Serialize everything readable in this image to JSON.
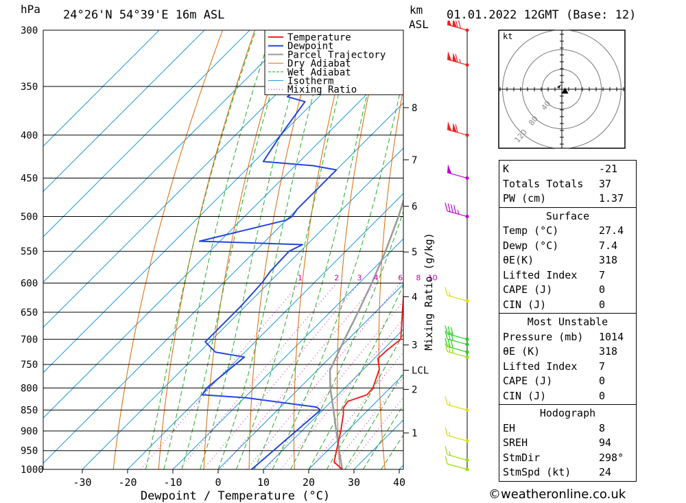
{
  "header": {
    "pressure_unit": "hPa",
    "location": "24°26'N  54°39'E  16m  ASL",
    "km_label": "km",
    "asl_label": "ASL",
    "datetime": "01.01.2022  12GMT  (Base: 12)"
  },
  "chart_data": {
    "type": "line",
    "subtype": "skew-T log-p diagram",
    "xlabel": "Dewpoint / Temperature (°C)",
    "ylabel": "hPa",
    "mixing_ratio_label": "Mixing Ratio (g/kg)",
    "pressure_ticks": [
      300,
      350,
      400,
      450,
      500,
      550,
      600,
      650,
      700,
      750,
      800,
      850,
      900,
      950,
      1000
    ],
    "temperature_ticks": [
      -30,
      -20,
      -10,
      0,
      10,
      20,
      30,
      40
    ],
    "ylim": [
      1000,
      300
    ],
    "xlim": [
      -40,
      40
    ],
    "height_ticks": [
      {
        "label": "1",
        "p": 905
      },
      {
        "label": "2",
        "p": 803
      },
      {
        "label": "3",
        "p": 711
      },
      {
        "label": "4",
        "p": 623
      },
      {
        "label": "5",
        "p": 551
      },
      {
        "label": "6",
        "p": 486
      },
      {
        "label": "7",
        "p": 428
      },
      {
        "label": "8",
        "p": 371
      },
      {
        "label": "LCL",
        "p": 762
      }
    ],
    "mixing_ratio_lines": [
      "1",
      "2",
      "3",
      "4",
      "6",
      "8",
      "10",
      "15",
      "20",
      "25"
    ],
    "legend": {
      "position": "top-right",
      "entries": [
        {
          "name": "Temperature",
          "color": "#ee2222"
        },
        {
          "name": "Dewpoint",
          "color": "#2244dd"
        },
        {
          "name": "Parcel Trajectory",
          "color": "#999999"
        },
        {
          "name": "Dry Adiabat",
          "color": "#dd6600"
        },
        {
          "name": "Wet Adiabat",
          "color": "#22aa22"
        },
        {
          "name": "Isotherm",
          "color": "#2299dd"
        },
        {
          "name": "Mixing Ratio",
          "color": "#cc00aa"
        }
      ]
    },
    "series": [
      {
        "name": "Temperature",
        "points": [
          [
            1000,
            27.4
          ],
          [
            980,
            24
          ],
          [
            950,
            22
          ],
          [
            900,
            18.6
          ],
          [
            860,
            15.5
          ],
          [
            845,
            14.1
          ],
          [
            830,
            13.6
          ],
          [
            815,
            16.4
          ],
          [
            800,
            16.2
          ],
          [
            760,
            13.5
          ],
          [
            738,
            10.8
          ],
          [
            720,
            11
          ],
          [
            700,
            11.6
          ],
          [
            650,
            6
          ],
          [
            600,
            0
          ],
          [
            550,
            -5.8
          ],
          [
            535,
            -5.5
          ],
          [
            522,
            -4
          ],
          [
            500,
            -5.2
          ],
          [
            450,
            -12.4
          ],
          [
            435,
            -12.6
          ],
          [
            400,
            -17.8
          ],
          [
            350,
            -25.8
          ],
          [
            300,
            -38
          ]
        ]
      },
      {
        "name": "Dewpoint",
        "points": [
          [
            1000,
            7.4
          ],
          [
            850,
            9.5
          ],
          [
            843,
            8
          ],
          [
            822,
            -9.5
          ],
          [
            815,
            -20
          ],
          [
            800,
            -20.5
          ],
          [
            735,
            -19
          ],
          [
            725,
            -26.5
          ],
          [
            705,
            -31
          ],
          [
            700,
            -31
          ],
          [
            640,
            -31
          ],
          [
            600,
            -31.5
          ],
          [
            581,
            -32.2
          ],
          [
            550,
            -32.5
          ],
          [
            540,
            -31
          ],
          [
            535,
            -54.5
          ],
          [
            505,
            -40
          ],
          [
            500,
            -39.5
          ],
          [
            490,
            -40
          ],
          [
            440,
            -40
          ],
          [
            435,
            -46
          ],
          [
            430,
            -58
          ],
          [
            400,
            -60
          ],
          [
            365,
            -62
          ],
          [
            360,
            -67
          ],
          [
            325,
            -64
          ],
          [
            300,
            -82
          ]
        ]
      },
      {
        "name": "Parcel Trajectory",
        "points": [
          [
            1000,
            27.4
          ],
          [
            950,
            22.6
          ],
          [
            900,
            17.6
          ],
          [
            850,
            12.4
          ],
          [
            800,
            6.8
          ],
          [
            762,
            2.8
          ],
          [
            700,
            -0.8
          ],
          [
            650,
            -3.8
          ],
          [
            600,
            -7.2
          ],
          [
            550,
            -11.2
          ],
          [
            500,
            -16
          ],
          [
            450,
            -21.8
          ],
          [
            400,
            -29
          ],
          [
            350,
            -38.5
          ],
          [
            300,
            -50.5
          ]
        ]
      }
    ],
    "wind_barbs": [
      {
        "p": 300,
        "speed_kt": 120,
        "color": "#ee2222"
      },
      {
        "p": 330,
        "speed_kt": 115,
        "color": "#ee2222"
      },
      {
        "p": 400,
        "speed_kt": 110,
        "color": "#ee2222"
      },
      {
        "p": 450,
        "speed_kt": 50,
        "color": "#bb00cc"
      },
      {
        "p": 500,
        "speed_kt": 45,
        "color": "#bb00cc"
      },
      {
        "p": 630,
        "speed_kt": 15,
        "color": "#dddd00"
      },
      {
        "p": 700,
        "speed_kt": 30,
        "color": "#22cc22"
      },
      {
        "p": 710,
        "speed_kt": 30,
        "color": "#22cc22"
      },
      {
        "p": 725,
        "speed_kt": 30,
        "color": "#22cc22"
      },
      {
        "p": 735,
        "speed_kt": 25,
        "color": "#99dd00"
      },
      {
        "p": 850,
        "speed_kt": 15,
        "color": "#dddd00"
      },
      {
        "p": 925,
        "speed_kt": 15,
        "color": "#dddd00"
      },
      {
        "p": 975,
        "speed_kt": 15,
        "color": "#99dd00"
      },
      {
        "p": 1000,
        "speed_kt": 10,
        "color": "#99dd00"
      }
    ],
    "hodograph": {
      "unit_label": "kt",
      "ring_labels": [
        "40",
        "80",
        "120"
      ],
      "storm_motion_dir_deg": 298,
      "storm_motion_speed_kt": 24
    }
  },
  "indices": {
    "general": [
      {
        "label": "K",
        "value": "-21"
      },
      {
        "label": "Totals Totals",
        "value": "37"
      },
      {
        "label": "PW (cm)",
        "value": "1.37"
      }
    ],
    "surface": {
      "title": "Surface",
      "rows": [
        {
          "label": "Temp (°C)",
          "value": "27.4"
        },
        {
          "label": "Dewp (°C)",
          "value": "7.4"
        },
        {
          "label": "θE(K)",
          "value": "318"
        },
        {
          "label": "Lifted Index",
          "value": "7"
        },
        {
          "label": "CAPE (J)",
          "value": "0"
        },
        {
          "label": "CIN (J)",
          "value": "0"
        }
      ]
    },
    "most_unstable": {
      "title": "Most Unstable",
      "rows": [
        {
          "label": "Pressure (mb)",
          "value": "1014"
        },
        {
          "label": "θE (K)",
          "value": "318"
        },
        {
          "label": "Lifted Index",
          "value": "7"
        },
        {
          "label": "CAPE (J)",
          "value": "0"
        },
        {
          "label": "CIN (J)",
          "value": "0"
        }
      ]
    },
    "hodograph": {
      "title": "Hodograph",
      "rows": [
        {
          "label": "EH",
          "value": "8"
        },
        {
          "label": "SREH",
          "value": "94"
        },
        {
          "label": "StmDir",
          "value": "298°"
        },
        {
          "label": "StmSpd (kt)",
          "value": "24"
        }
      ]
    }
  },
  "footer": {
    "credit": "©weatheronline.co.uk"
  }
}
